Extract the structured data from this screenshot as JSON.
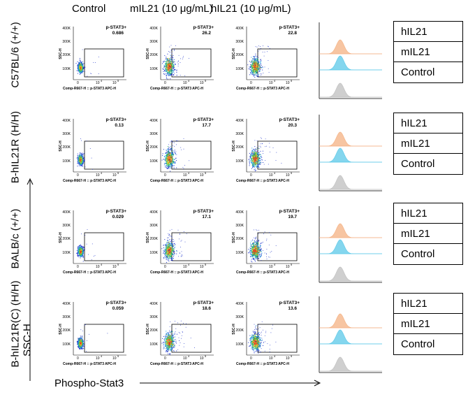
{
  "columns": [
    "Control",
    "mIL21 (10 μg/mL)",
    "hIL21 (10 μg/mL)"
  ],
  "rows": [
    {
      "label": "C57BL/6 (+/+)",
      "values": [
        "0.686",
        "26.2",
        "22.8"
      ]
    },
    {
      "label": "B-hIL21R (H/H)",
      "values": [
        "0.13",
        "17.7",
        "20.3"
      ]
    },
    {
      "label": "BALB/c (+/+)",
      "values": [
        "0.029",
        "17.1",
        "19.7"
      ]
    },
    {
      "label": "B-hIL21R(C) (H/H)",
      "values": [
        "0.059",
        "18.6",
        "13.6"
      ]
    }
  ],
  "gate_label": "p-STAT3+",
  "yticks": [
    "400K",
    "300K",
    "200K",
    "100K"
  ],
  "xticks": [
    "0",
    "10",
    "10"
  ],
  "xtick_exp": [
    "4",
    "5"
  ],
  "x_axis_small": "Comp-R667-H :: p-STAT3 APC-H",
  "y_axis_small": "SSC-H",
  "axis_y_title": "SSC-H",
  "axis_x_title": "Phospho-Stat3",
  "legend": [
    "hIL21",
    "mIL21",
    "Control"
  ],
  "colors": {
    "hIL21": "#f4b183",
    "mIL21": "#5bc8e8",
    "Control": "#bfbfbf"
  },
  "chart_data": {
    "type": "table",
    "title": "",
    "xlabel": "Phospho-Stat3",
    "ylabel": "SSC-H",
    "categories": [
      "Control",
      "mIL21 (10 μg/mL)",
      "hIL21 (10 μg/mL)"
    ],
    "series": [
      {
        "name": "C57BL/6 (+/+)",
        "values": [
          0.686,
          26.2,
          22.8
        ]
      },
      {
        "name": "B-hIL21R (H/H)",
        "values": [
          0.13,
          17.7,
          20.3
        ]
      },
      {
        "name": "BALB/c (+/+)",
        "values": [
          0.029,
          17.1,
          19.7
        ]
      },
      {
        "name": "B-hIL21R(C) (H/H)",
        "values": [
          0.059,
          18.6,
          13.6
        ]
      }
    ]
  }
}
